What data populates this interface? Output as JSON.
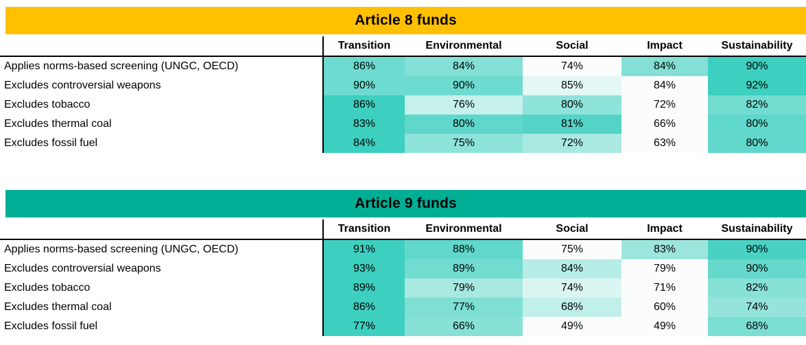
{
  "page": {
    "background": "#FFFFFF",
    "text_color": "#000000"
  },
  "heatmap_style": {
    "normalization": "per-row",
    "min_color": "#FBFDFD",
    "max_color": "#3DCFBF",
    "rule_color": "#000000"
  },
  "chart_data": [
    {
      "type": "heatmap",
      "title": "Article 8 funds",
      "banner_color": "#FFC000",
      "unit": "%",
      "columns": [
        "Transition",
        "Environmental",
        "Social",
        "Impact",
        "Sustainability"
      ],
      "row_labels": [
        "Applies norms-based screening (UNGC, OECD)",
        "Excludes controversial weapons",
        "Excludes tobacco",
        "Excludes thermal coal",
        "Excludes fossil fuel"
      ],
      "values": [
        [
          86,
          84,
          74,
          84,
          90
        ],
        [
          90,
          90,
          85,
          84,
          92
        ],
        [
          86,
          76,
          80,
          72,
          82
        ],
        [
          83,
          80,
          81,
          66,
          80
        ],
        [
          84,
          75,
          72,
          63,
          80
        ]
      ]
    },
    {
      "type": "heatmap",
      "title": "Article 9 funds",
      "banner_color": "#00AE96",
      "unit": "%",
      "columns": [
        "Transition",
        "Environmental",
        "Social",
        "Impact",
        "Sustainability"
      ],
      "row_labels": [
        "Applies norms-based screening (UNGC, OECD)",
        "Excludes controversial weapons",
        "Excludes tobacco",
        "Excludes thermal coal",
        "Excludes fossil fuel"
      ],
      "values": [
        [
          91,
          88,
          75,
          83,
          90
        ],
        [
          93,
          89,
          84,
          79,
          90
        ],
        [
          89,
          79,
          74,
          71,
          82
        ],
        [
          86,
          77,
          68,
          60,
          74
        ],
        [
          77,
          66,
          49,
          49,
          68
        ]
      ]
    }
  ]
}
